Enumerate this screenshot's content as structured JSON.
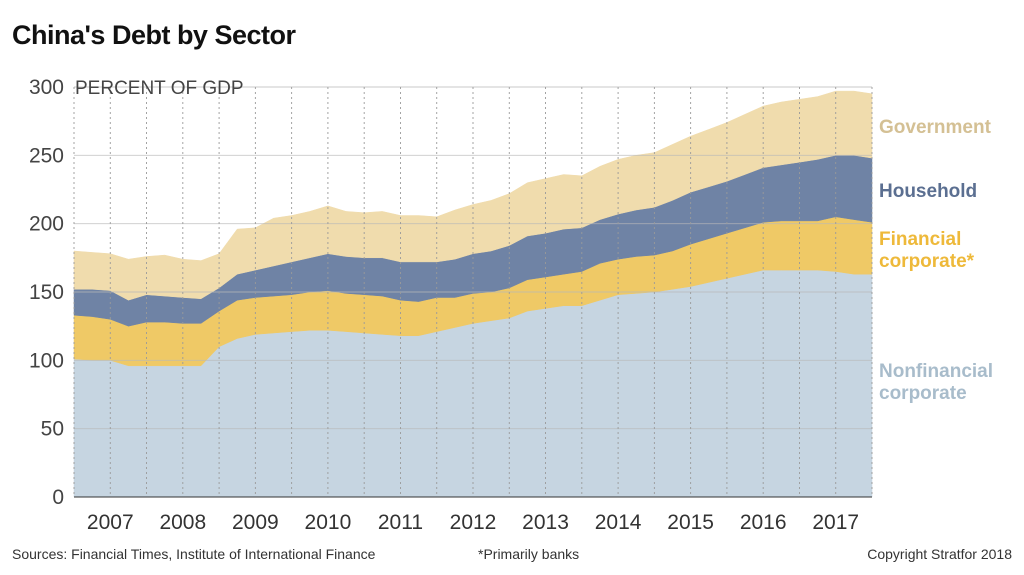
{
  "chart_data": {
    "type": "area",
    "stacked": true,
    "title": "China's Debt by Sector",
    "ylabel": "PERCENT OF GDP",
    "ylim": [
      0,
      300
    ],
    "yticks": [
      0,
      50,
      100,
      150,
      200,
      250,
      300
    ],
    "xlim": [
      2006.5,
      2017.5
    ],
    "xtick_labels": [
      "2007",
      "2008",
      "2009",
      "2010",
      "2011",
      "2012",
      "2013",
      "2014",
      "2015",
      "2016",
      "2017"
    ],
    "x": [
      2006.5,
      2006.75,
      2007.0,
      2007.25,
      2007.5,
      2007.75,
      2008.0,
      2008.25,
      2008.5,
      2008.75,
      2009.0,
      2009.25,
      2009.5,
      2009.75,
      2010.0,
      2010.25,
      2010.5,
      2010.75,
      2011.0,
      2011.25,
      2011.5,
      2011.75,
      2012.0,
      2012.25,
      2012.5,
      2012.75,
      2013.0,
      2013.25,
      2013.5,
      2013.75,
      2014.0,
      2014.25,
      2014.5,
      2014.75,
      2015.0,
      2015.25,
      2015.5,
      2015.75,
      2016.0,
      2016.25,
      2016.5,
      2016.75,
      2017.0,
      2017.25,
      2017.5
    ],
    "series": [
      {
        "name": "Nonfinancial corporate",
        "color": "#c6d5e1",
        "values": [
          101,
          100,
          100,
          96,
          96,
          96,
          96,
          96,
          110,
          116,
          119,
          120,
          121,
          122,
          122,
          121,
          120,
          119,
          118,
          118,
          121,
          124,
          127,
          129,
          131,
          136,
          138,
          140,
          140,
          144,
          148,
          149,
          150,
          152,
          154,
          157,
          160,
          163,
          166,
          166,
          166,
          166,
          165,
          163,
          163
        ]
      },
      {
        "name": "Financial corporate*",
        "color": "#efc966",
        "values": [
          32,
          32,
          30,
          29,
          32,
          32,
          31,
          31,
          26,
          28,
          27,
          27,
          27,
          28,
          29,
          28,
          28,
          28,
          26,
          25,
          25,
          22,
          22,
          21,
          22,
          23,
          23,
          23,
          25,
          27,
          26,
          27,
          27,
          28,
          31,
          32,
          33,
          34,
          35,
          36,
          36,
          36,
          40,
          40,
          38
        ]
      },
      {
        "name": "Household",
        "color": "#6f83a5",
        "values": [
          19,
          20,
          21,
          19,
          20,
          19,
          19,
          18,
          17,
          19,
          20,
          22,
          24,
          25,
          27,
          27,
          27,
          28,
          28,
          29,
          26,
          28,
          29,
          30,
          31,
          32,
          32,
          33,
          32,
          32,
          33,
          34,
          35,
          37,
          38,
          38,
          38,
          39,
          40,
          41,
          43,
          45,
          45,
          47,
          47
        ]
      },
      {
        "name": "Government",
        "color": "#f0dcad",
        "values": [
          28,
          27,
          27,
          30,
          28,
          30,
          28,
          28,
          25,
          33,
          31,
          35,
          34,
          34,
          35,
          33,
          33,
          34,
          34,
          34,
          33,
          36,
          36,
          37,
          38,
          39,
          40,
          40,
          38,
          39,
          40,
          40,
          40,
          41,
          41,
          42,
          43,
          44,
          45,
          46,
          46,
          46,
          47,
          47,
          47
        ]
      }
    ],
    "legend_placement": "right",
    "annotations": {
      "ylabel_inline": "PERCENT OF GDP"
    },
    "labels": [
      {
        "lines": [
          "Government"
        ],
        "color": "#d4c094"
      },
      {
        "lines": [
          "Household"
        ],
        "color": "#5b6f91"
      },
      {
        "lines": [
          "Financial",
          "corporate*"
        ],
        "color": "#eeb93a"
      },
      {
        "lines": [
          "Nonfinancial",
          "corporate"
        ],
        "color": "#a8bccb"
      }
    ],
    "grid": true
  },
  "footer": {
    "source": "Sources: Financial Times, Institute of International Finance",
    "footnote": "*Primarily banks",
    "copyright": "Copyright Stratfor 2018"
  }
}
